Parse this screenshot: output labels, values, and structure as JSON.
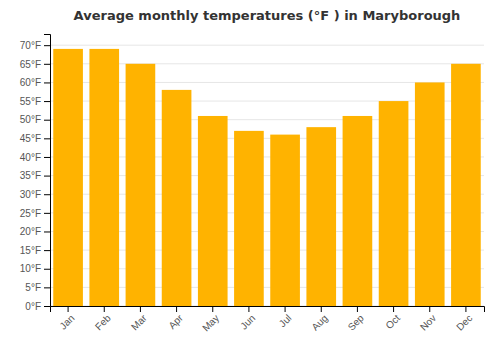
{
  "chart_data": {
    "type": "bar",
    "title": "Average monthly temperatures (°F ) in Maryborough",
    "categories": [
      "Jan",
      "Feb",
      "Mar",
      "Apr",
      "May",
      "Jun",
      "Jul",
      "Aug",
      "Sep",
      "Oct",
      "Nov",
      "Dec"
    ],
    "values": [
      69,
      69,
      65,
      58,
      51,
      47,
      46,
      48,
      51,
      55,
      60,
      65
    ],
    "color": "#FFB300",
    "ylim": [
      0,
      73
    ],
    "yticks": [
      {
        "value": 0,
        "label": "0°F"
      },
      {
        "value": 5,
        "label": "5°F"
      },
      {
        "value": 10,
        "label": "10°F"
      },
      {
        "value": 15,
        "label": "15°F"
      },
      {
        "value": 20,
        "label": "20°F"
      },
      {
        "value": 25,
        "label": "25°F"
      },
      {
        "value": 30,
        "label": "30°F"
      },
      {
        "value": 35,
        "label": "35°F"
      },
      {
        "value": 40,
        "label": "40°F"
      },
      {
        "value": 45,
        "label": "45°F"
      },
      {
        "value": 50,
        "label": "50°F"
      },
      {
        "value": 55,
        "label": "55°F"
      },
      {
        "value": 60,
        "label": "60°F"
      },
      {
        "value": 65,
        "label": "65°F"
      },
      {
        "value": 70,
        "label": "70°F"
      }
    ],
    "grid": true
  }
}
